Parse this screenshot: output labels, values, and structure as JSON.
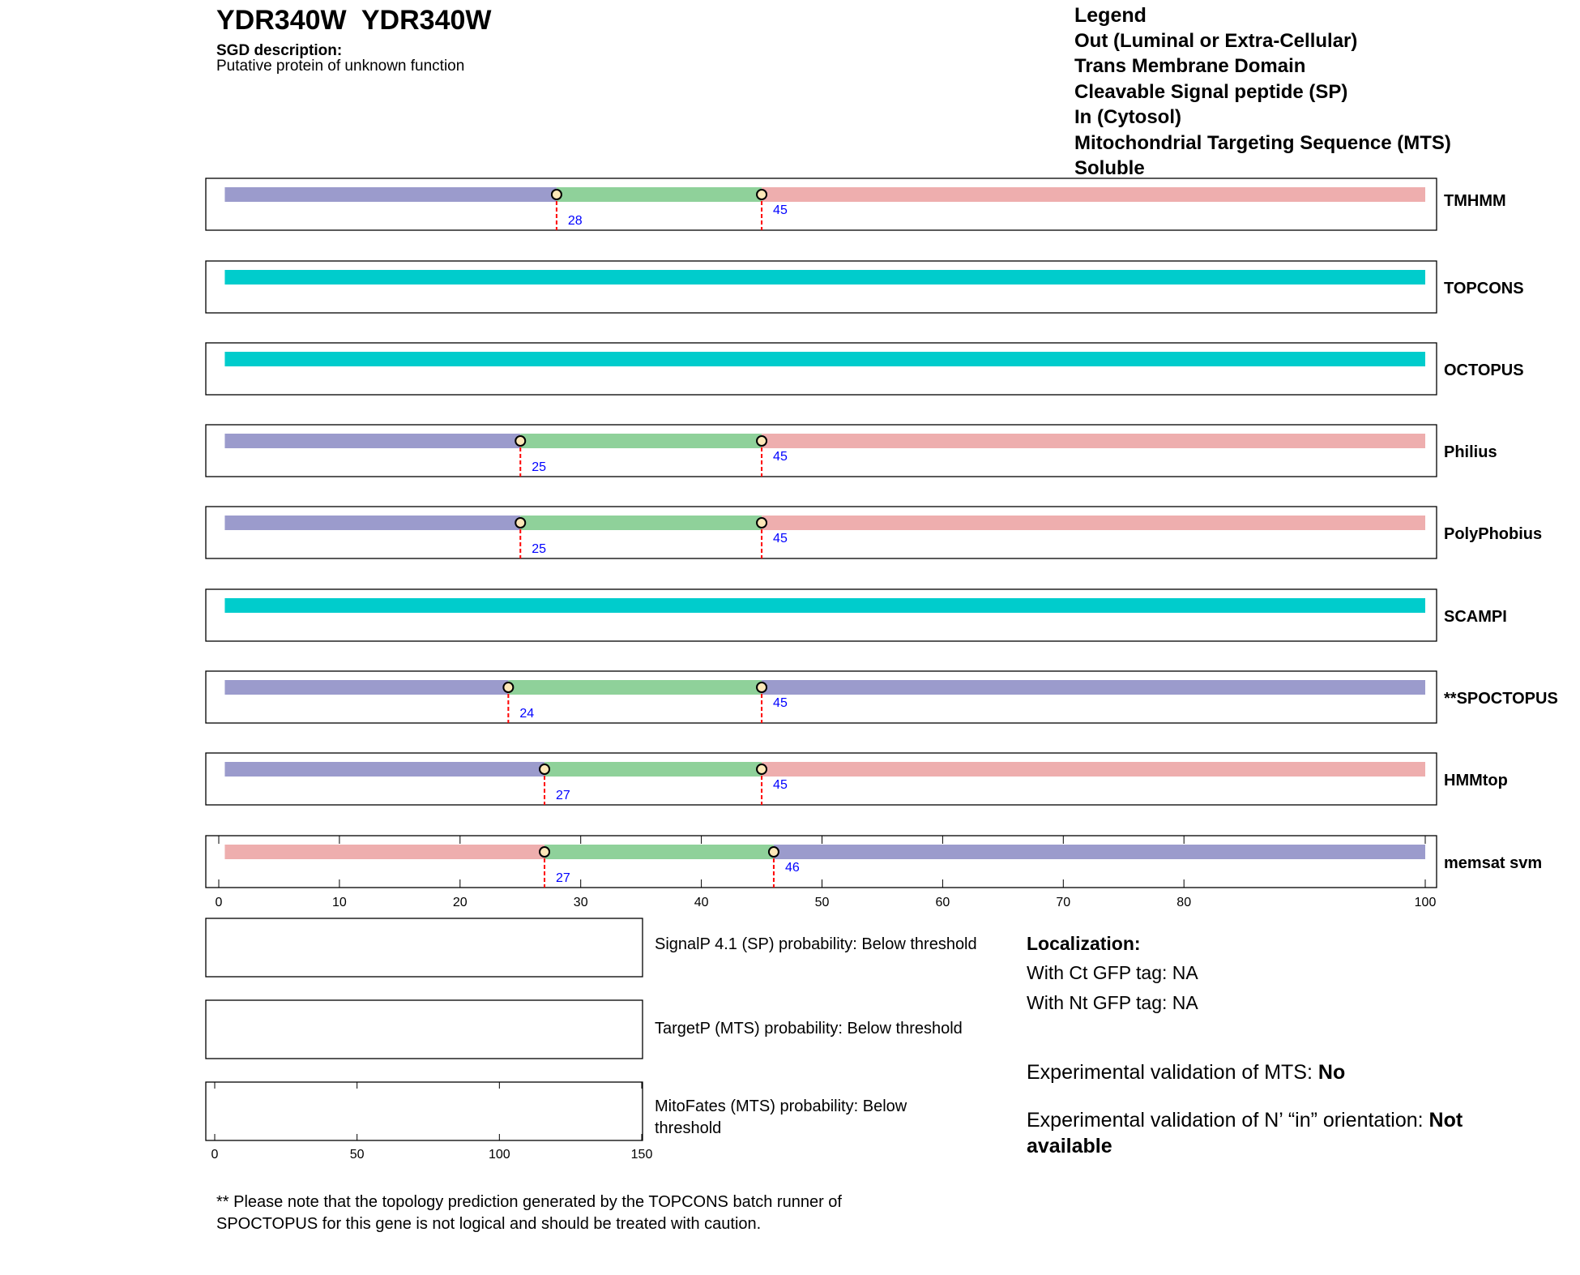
{
  "header": {
    "title": "YDR340W  YDR340W",
    "sgd_label": "SGD description:",
    "sgd_text": "Putative protein of unknown function"
  },
  "legend": {
    "title": "Legend",
    "items": [
      {
        "label": "Out (Luminal or Extra-Cellular)",
        "color": "#9b9bcc"
      },
      {
        "label": "Trans Membrane Domain",
        "color": "#8fd19a"
      },
      {
        "label": "Cleavable Signal peptide (SP)",
        "color": "#b5d3f0"
      },
      {
        "label": "In (Cytosol)",
        "color": "#eeaeae"
      },
      {
        "label": "Mitochondrial Targeting Sequence (MTS)",
        "color": "#e8ae19"
      },
      {
        "label": "Soluble",
        "color": "#00cccc"
      }
    ]
  },
  "chart_data": {
    "type": "topology",
    "xlim": [
      0,
      100
    ],
    "xticks": [
      0,
      10,
      20,
      30,
      40,
      50,
      60,
      70,
      80,
      100
    ],
    "tracks": [
      {
        "name": "TMHMM",
        "segments": [
          {
            "type": "out",
            "start": 0.5,
            "end": 28
          },
          {
            "type": "tm",
            "start": 28,
            "end": 45
          },
          {
            "type": "in",
            "start": 45,
            "end": 100
          }
        ],
        "markers": [
          28,
          45
        ]
      },
      {
        "name": "TOPCONS",
        "segments": [
          {
            "type": "soluble",
            "start": 0.5,
            "end": 100
          }
        ],
        "markers": []
      },
      {
        "name": "OCTOPUS",
        "segments": [
          {
            "type": "soluble",
            "start": 0.5,
            "end": 100
          }
        ],
        "markers": []
      },
      {
        "name": "Philius",
        "segments": [
          {
            "type": "out",
            "start": 0.5,
            "end": 25
          },
          {
            "type": "tm",
            "start": 25,
            "end": 45
          },
          {
            "type": "in",
            "start": 45,
            "end": 100
          }
        ],
        "markers": [
          25,
          45
        ]
      },
      {
        "name": "PolyPhobius",
        "segments": [
          {
            "type": "out",
            "start": 0.5,
            "end": 25
          },
          {
            "type": "tm",
            "start": 25,
            "end": 45
          },
          {
            "type": "in",
            "start": 45,
            "end": 100
          }
        ],
        "markers": [
          25,
          45
        ]
      },
      {
        "name": "SCAMPI",
        "segments": [
          {
            "type": "soluble",
            "start": 0.5,
            "end": 100
          }
        ],
        "markers": []
      },
      {
        "name": "**SPOCTOPUS",
        "segments": [
          {
            "type": "out",
            "start": 0.5,
            "end": 24
          },
          {
            "type": "tm",
            "start": 24,
            "end": 45
          },
          {
            "type": "out",
            "start": 45,
            "end": 100
          }
        ],
        "markers": [
          24,
          45
        ]
      },
      {
        "name": "HMMtop",
        "segments": [
          {
            "type": "out",
            "start": 0.5,
            "end": 27
          },
          {
            "type": "tm",
            "start": 27,
            "end": 45
          },
          {
            "type": "in",
            "start": 45,
            "end": 100
          }
        ],
        "markers": [
          27,
          45
        ]
      },
      {
        "name": "memsat svm",
        "segments": [
          {
            "type": "in",
            "start": 0.5,
            "end": 27
          },
          {
            "type": "tm",
            "start": 27,
            "end": 46
          },
          {
            "type": "out",
            "start": 46,
            "end": 100
          }
        ],
        "markers": [
          27,
          46
        ]
      }
    ],
    "probability_panels": {
      "xlim": [
        0,
        150
      ],
      "xticks": [
        0,
        50,
        100,
        150
      ]
    },
    "colors": {
      "out": "#9b9bcc",
      "tm": "#8fd19a",
      "in": "#eeaeae",
      "soluble": "#00cccc",
      "marker_line": "#ff0000",
      "marker_label": "#0000ff",
      "marker_fill": "#fde8b8"
    }
  },
  "probabilities": {
    "signalp": "SignalP 4.1 (SP) probability: Below threshold",
    "targetp": "TargetP (MTS) probability: Below threshold",
    "mitofates": "MitoFates (MTS) probability: Below threshold"
  },
  "localization": {
    "title": "Localization:",
    "ct": "With Ct GFP tag: NA",
    "nt": "With Nt GFP tag: NA"
  },
  "experimental": {
    "mts_label": "Experimental validation of MTS: ",
    "mts_value": "No",
    "nin_label": "Experimental validation of N’ “in” orientation: ",
    "nin_value": "Not available"
  },
  "note": "** Please note that the topology prediction generated by the TOPCONS batch runner of SPOCTOPUS for this gene is not logical and should be treated with caution."
}
